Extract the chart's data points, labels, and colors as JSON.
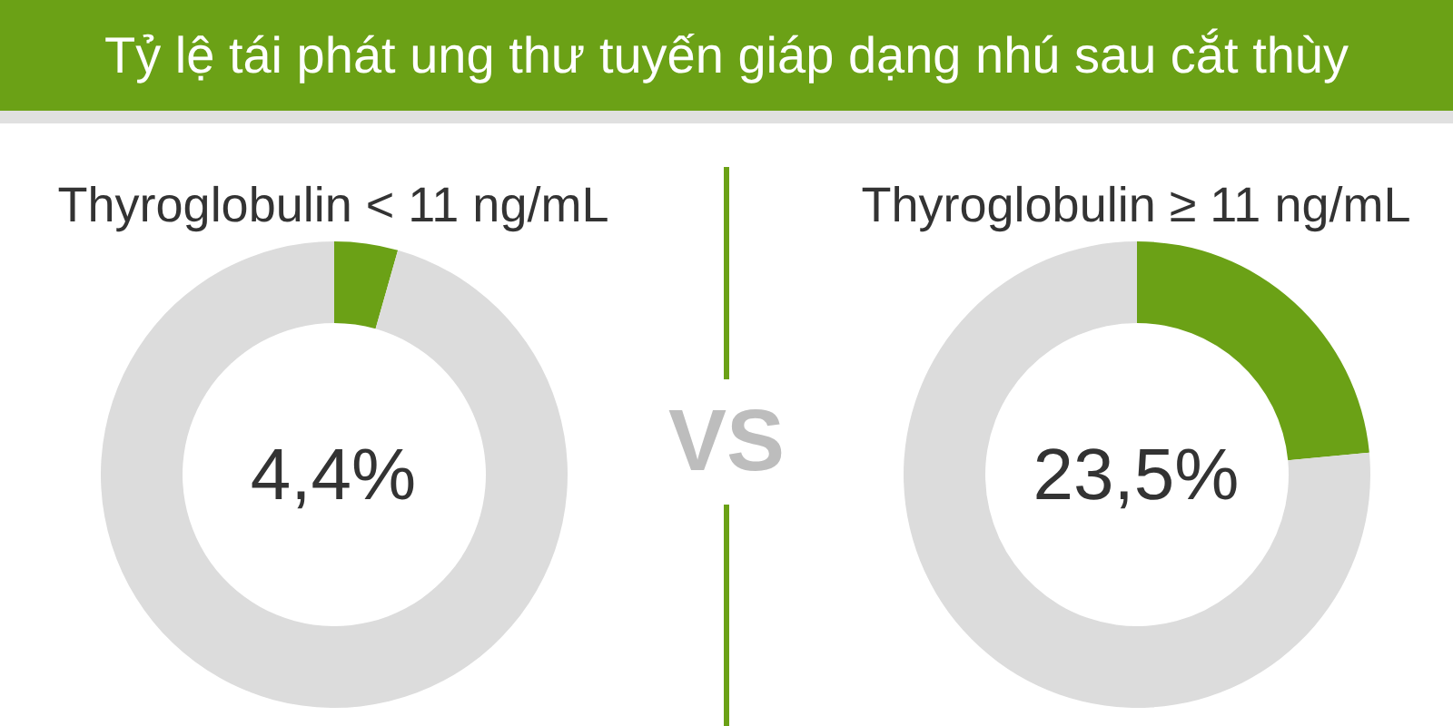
{
  "chart_data": [
    {
      "type": "other",
      "title": "Tỷ lệ tái phát ung thư tuyến giáp dạng nhú sau cắt thùy",
      "annotations": [
        "VS"
      ]
    },
    {
      "type": "donut",
      "title": "Thyroglobulin < 11 ng/mL",
      "categories": [
        null,
        null
      ],
      "values": [
        4.4,
        95.6
      ],
      "colors": [
        "#6ba116",
        "#dcdcdc"
      ],
      "annotations": [
        "4,4%"
      ]
    },
    {
      "type": "donut",
      "title": "Thyroglobulin ≥ 11 ng/mL",
      "categories": [
        null,
        null
      ],
      "values": [
        23.5,
        76.5
      ],
      "colors": [
        "#6ba116",
        "#dcdcdc"
      ],
      "annotations": [
        "23,5%"
      ]
    }
  ]
}
